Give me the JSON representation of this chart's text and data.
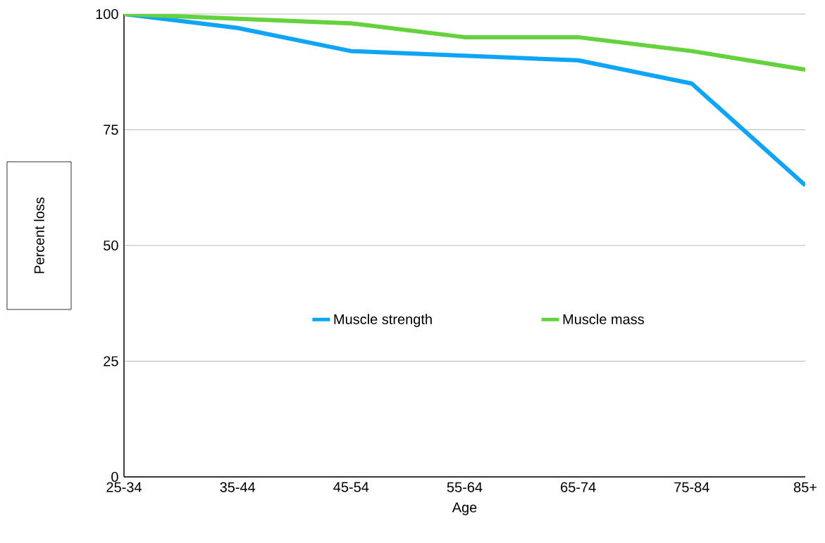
{
  "chart_data": {
    "type": "line",
    "xlabel": "Age",
    "ylabel": "Percent loss",
    "categories": [
      "25-34",
      "35-44",
      "45-54",
      "55-64",
      "65-74",
      "75-84",
      "85+"
    ],
    "series": [
      {
        "name": "Muscle strength",
        "color": "#0fa4f5",
        "values": [
          100,
          97,
          92,
          91,
          90,
          85,
          63
        ]
      },
      {
        "name": "Muscle mass",
        "color": "#64d23c",
        "values": [
          100,
          99,
          98,
          95,
          95,
          92,
          88
        ]
      }
    ],
    "ylim": [
      0,
      100
    ],
    "yticks": [
      0,
      25,
      50,
      75,
      100
    ],
    "grid": "y",
    "legend": "center",
    "marker": "none",
    "line_style": "solid"
  }
}
